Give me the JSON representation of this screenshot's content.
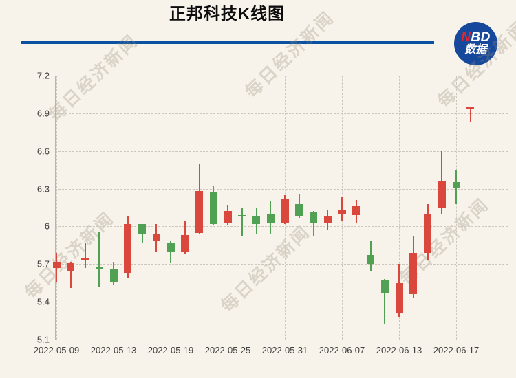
{
  "title": "正邦科技K线图",
  "logo": {
    "n": "N",
    "bd": "BD",
    "line2": "数据"
  },
  "watermark": {
    "text": "每日经济新闻"
  },
  "colors": {
    "background": "#f7f2ea",
    "divider_blue": "#0a51a2",
    "logo_blue": "#16499c",
    "logo_red": "#e2262d",
    "up_red": "#d9473d",
    "down_green": "#50a154",
    "grid": "#ccc7bd",
    "axis": "#b9b5ad",
    "tick_text": "#3f3f3f"
  },
  "chart_data": {
    "type": "candlestick",
    "title": "正邦科技K线图",
    "convention": "red body = close >= open (up), green body = close < open (down)",
    "ylim": [
      5.1,
      7.2
    ],
    "grid": "dashed horizontal and vertical gridlines",
    "y_ticks": [
      "7.2",
      "6.9",
      "6.6",
      "6.3",
      "6",
      "5.7",
      "5.4",
      "5.1"
    ],
    "y_tick_values": [
      7.2,
      6.9,
      6.6,
      6.3,
      6.0,
      5.7,
      5.4,
      5.1
    ],
    "x_tick_labels": [
      "2022-05-09",
      "2022-05-13",
      "2022-05-19",
      "2022-05-25",
      "2022-05-31",
      "2022-06-07",
      "2022-06-13",
      "2022-06-17"
    ],
    "x_tick_candle_indices": [
      0,
      4,
      8,
      12,
      16,
      20,
      24,
      28
    ],
    "candles": [
      {
        "date": "2022-05-09",
        "open": 5.67,
        "close": 5.72,
        "high": 5.79,
        "low": 5.56
      },
      {
        "date": "2022-05-10",
        "open": 5.64,
        "close": 5.71,
        "high": 5.72,
        "low": 5.51
      },
      {
        "date": "2022-05-11",
        "open": 5.73,
        "close": 5.75,
        "high": 5.87,
        "low": 5.67
      },
      {
        "date": "2022-05-12",
        "open": 5.68,
        "close": 5.66,
        "high": 5.96,
        "low": 5.52
      },
      {
        "date": "2022-05-13",
        "open": 5.66,
        "close": 5.56,
        "high": 5.72,
        "low": 5.53
      },
      {
        "date": "2022-05-16",
        "open": 5.63,
        "close": 6.02,
        "high": 6.08,
        "low": 5.59
      },
      {
        "date": "2022-05-17",
        "open": 6.02,
        "close": 5.94,
        "high": 6.02,
        "low": 5.87
      },
      {
        "date": "2022-05-18",
        "open": 5.89,
        "close": 5.94,
        "high": 6.02,
        "low": 5.8
      },
      {
        "date": "2022-05-19",
        "open": 5.87,
        "close": 5.8,
        "high": 5.88,
        "low": 5.71
      },
      {
        "date": "2022-05-20",
        "open": 5.8,
        "close": 5.93,
        "high": 6.04,
        "low": 5.78
      },
      {
        "date": "2022-05-23",
        "open": 5.95,
        "close": 6.28,
        "high": 6.5,
        "low": 5.94
      },
      {
        "date": "2022-05-24",
        "open": 6.27,
        "close": 6.02,
        "high": 6.32,
        "low": 6.01
      },
      {
        "date": "2022-05-25",
        "open": 6.03,
        "close": 6.12,
        "high": 6.17,
        "low": 6.01
      },
      {
        "date": "2022-05-26",
        "open": 6.09,
        "close": 6.08,
        "high": 6.15,
        "low": 5.92
      },
      {
        "date": "2022-05-27",
        "open": 6.08,
        "close": 6.02,
        "high": 6.15,
        "low": 5.94
      },
      {
        "date": "2022-05-30",
        "open": 6.1,
        "close": 6.03,
        "high": 6.2,
        "low": 5.94
      },
      {
        "date": "2022-05-31",
        "open": 6.03,
        "close": 6.22,
        "high": 6.25,
        "low": 6.02
      },
      {
        "date": "2022-06-01",
        "open": 6.18,
        "close": 6.08,
        "high": 6.26,
        "low": 6.07
      },
      {
        "date": "2022-06-02",
        "open": 6.11,
        "close": 6.03,
        "high": 6.12,
        "low": 5.92
      },
      {
        "date": "2022-06-06",
        "open": 6.03,
        "close": 6.08,
        "high": 6.13,
        "low": 5.97
      },
      {
        "date": "2022-06-07",
        "open": 6.1,
        "close": 6.13,
        "high": 6.24,
        "low": 6.04
      },
      {
        "date": "2022-06-08",
        "open": 6.09,
        "close": 6.16,
        "high": 6.21,
        "low": 6.03
      },
      {
        "date": "2022-06-09",
        "open": 5.77,
        "close": 5.7,
        "high": 5.88,
        "low": 5.64
      },
      {
        "date": "2022-06-10",
        "open": 5.57,
        "close": 5.47,
        "high": 5.58,
        "low": 5.22
      },
      {
        "date": "2022-06-13",
        "open": 5.31,
        "close": 5.55,
        "high": 5.7,
        "low": 5.28
      },
      {
        "date": "2022-06-14",
        "open": 5.46,
        "close": 5.79,
        "high": 5.92,
        "low": 5.43
      },
      {
        "date": "2022-06-15",
        "open": 5.79,
        "close": 6.1,
        "high": 6.18,
        "low": 5.73
      },
      {
        "date": "2022-06-16",
        "open": 6.15,
        "close": 6.36,
        "high": 6.6,
        "low": 6.1
      },
      {
        "date": "2022-06-17",
        "open": 6.35,
        "close": 6.31,
        "high": 6.45,
        "low": 6.18
      },
      {
        "date": "2022-06-20",
        "open": 6.93,
        "close": 6.95,
        "high": 6.95,
        "low": 6.83
      }
    ]
  }
}
